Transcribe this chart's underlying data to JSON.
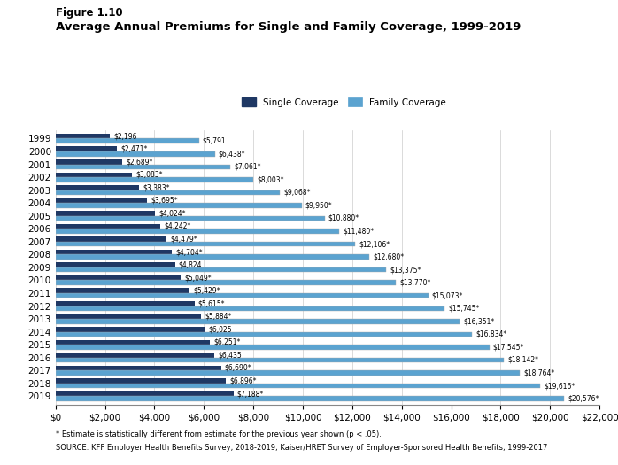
{
  "years": [
    "1999",
    "2000",
    "2001",
    "2002",
    "2003",
    "2004",
    "2005",
    "2006",
    "2007",
    "2008",
    "2009",
    "2010",
    "2011",
    "2012",
    "2013",
    "2014",
    "2015",
    "2016",
    "2017",
    "2018",
    "2019"
  ],
  "single": [
    2196,
    2471,
    2689,
    3083,
    3383,
    3695,
    4024,
    4242,
    4479,
    4704,
    4824,
    5049,
    5429,
    5615,
    5884,
    6025,
    6251,
    6435,
    6690,
    6896,
    7188
  ],
  "family": [
    5791,
    6438,
    7061,
    8003,
    9068,
    9950,
    10880,
    11480,
    12106,
    12680,
    13375,
    13770,
    15073,
    15745,
    16351,
    16834,
    17545,
    18142,
    18764,
    19616,
    20576
  ],
  "single_labels": [
    "$2,196",
    "$2,471*",
    "$2,689*",
    "$3,083*",
    "$3,383*",
    "$3,695*",
    "$4,024*",
    "$4,242*",
    "$4,479*",
    "$4,704*",
    "$4,824",
    "$5,049*",
    "$5,429*",
    "$5,615*",
    "$5,884*",
    "$6,025",
    "$6,251*",
    "$6,435",
    "$6,690*",
    "$6,896*",
    "$7,188*"
  ],
  "family_labels": [
    "$5,791",
    "$6,438*",
    "$7,061*",
    "$8,003*",
    "$9,068*",
    "$9,950*",
    "$10,880*",
    "$11,480*",
    "$12,106*",
    "$12,680*",
    "$13,375*",
    "$13,770*",
    "$15,073*",
    "$15,745*",
    "$16,351*",
    "$16,834*",
    "$17,545*",
    "$18,142*",
    "$18,764*",
    "$19,616*",
    "$20,576*"
  ],
  "single_color": "#1f3864",
  "family_color": "#5ba3d0",
  "title_line1": "Figure 1.10",
  "title_line2": "Average Annual Premiums for Single and Family Coverage, 1999-2019",
  "legend_single": "Single Coverage",
  "legend_family": "Family Coverage",
  "xlim": [
    0,
    22000
  ],
  "xticks": [
    0,
    2000,
    4000,
    6000,
    8000,
    10000,
    12000,
    14000,
    16000,
    18000,
    20000,
    22000
  ],
  "footnote1": "* Estimate is statistically different from estimate for the previous year shown (p < .05).",
  "footnote2": "SOURCE: KFF Employer Health Benefits Survey, 2018-2019; Kaiser/HRET Survey of Employer-Sponsored Health Benefits, 1999-2017",
  "bar_height": 0.38,
  "background_color": "#ffffff",
  "label_fontsize": 5.5,
  "tick_fontsize": 7.5,
  "title1_fontsize": 8.5,
  "title2_fontsize": 9.5,
  "footnote_fontsize": 6.0,
  "legend_fontsize": 7.5
}
